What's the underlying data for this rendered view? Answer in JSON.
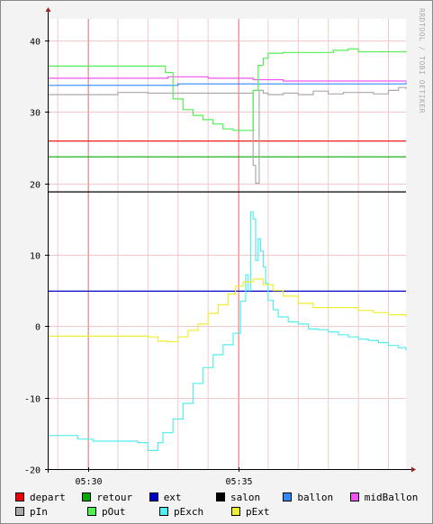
{
  "watermark": "RRDTOOL / TOBI OETIKER",
  "chart_data": {
    "type": "line",
    "title": "",
    "xlabel": "",
    "ylabel": "",
    "ylim": [
      -20,
      43
    ],
    "yticks": [
      -20,
      -10,
      0,
      10,
      20,
      30,
      40
    ],
    "ytick_labels": [
      "-20",
      "-10",
      "0",
      "10",
      "20",
      "30",
      "40"
    ],
    "xlim": [
      "05:28:40",
      "05:40:35"
    ],
    "xticks": [
      "05:30",
      "05:35"
    ],
    "grid": true,
    "legend_position": "bottom",
    "series": [
      {
        "name": "depart",
        "color": "#ee0000",
        "x": [
          "05:28:40",
          "05:40:35"
        ],
        "y": [
          25.9,
          25.9
        ]
      },
      {
        "name": "retour",
        "color": "#00aa00",
        "x": [
          "05:28:40",
          "05:40:35"
        ],
        "y": [
          23.7,
          23.7
        ]
      },
      {
        "name": "ext",
        "color": "#0000cc",
        "x": [
          "05:28:40",
          "05:40:35"
        ],
        "y": [
          4.9,
          4.9
        ]
      },
      {
        "name": "salon",
        "color": "#000000",
        "x": [
          "05:28:40",
          "05:40:35"
        ],
        "y": [
          18.8,
          18.8
        ]
      },
      {
        "name": "ballon",
        "color": "#3388ff",
        "x": [
          "05:28:40",
          "05:33:00",
          "05:36:00",
          "05:40:35"
        ],
        "y": [
          33.7,
          33.9,
          33.9,
          34.1
        ]
      },
      {
        "name": "midBallon",
        "color": "#ee55ee",
        "x": [
          "05:28:40",
          "05:32:40",
          "05:34:00",
          "05:35:30",
          "05:36:30",
          "05:40:35"
        ],
        "y": [
          34.7,
          34.9,
          34.7,
          34.5,
          34.3,
          34.2
        ]
      },
      {
        "name": "pIn",
        "color": "#aaaaaa",
        "x": [
          "05:28:40",
          "05:29:50",
          "05:31:00",
          "05:32:00",
          "05:33:00",
          "05:34:00",
          "05:35:00",
          "05:35:20",
          "05:35:30",
          "05:35:35",
          "05:35:42",
          "05:35:50",
          "05:36:00",
          "05:36:30",
          "05:37:00",
          "05:37:30",
          "05:38:00",
          "05:38:30",
          "05:39:00",
          "05:39:30",
          "05:40:00",
          "05:40:20",
          "05:40:35"
        ],
        "y": [
          32.4,
          32.4,
          32.7,
          32.6,
          32.6,
          32.6,
          32.6,
          32.6,
          22.5,
          20.0,
          33.0,
          32.6,
          32.4,
          32.6,
          32.4,
          32.9,
          32.5,
          32.7,
          32.7,
          32.5,
          33.0,
          33.4,
          33.2
        ]
      },
      {
        "name": "pOut",
        "color": "#55ee55",
        "x": [
          "05:28:40",
          "05:32:30",
          "05:32:35",
          "05:32:50",
          "05:33:10",
          "05:33:30",
          "05:33:50",
          "05:34:10",
          "05:34:30",
          "05:34:50",
          "05:35:20",
          "05:35:30",
          "05:35:40",
          "05:35:50",
          "05:36:00",
          "05:36:30",
          "05:37:00",
          "05:37:40",
          "05:38:10",
          "05:38:40",
          "05:39:00",
          "05:40:35"
        ],
        "y": [
          36.4,
          36.4,
          35.5,
          31.8,
          30.3,
          29.5,
          28.9,
          28.3,
          27.6,
          27.4,
          27.4,
          33.0,
          36.5,
          37.5,
          38.2,
          38.3,
          38.3,
          38.3,
          38.6,
          38.8,
          38.4,
          38.3
        ]
      },
      {
        "name": "pExch",
        "color": "#55eeee",
        "x": [
          "05:28:40",
          "05:29:10",
          "05:29:40",
          "05:30:10",
          "05:30:40",
          "05:31:10",
          "05:31:40",
          "05:32:00",
          "05:32:20",
          "05:32:30",
          "05:32:50",
          "05:33:10",
          "05:33:30",
          "05:33:50",
          "05:34:10",
          "05:34:30",
          "05:34:50",
          "05:35:05",
          "05:35:15",
          "05:35:20",
          "05:35:25",
          "05:35:30",
          "05:35:35",
          "05:35:40",
          "05:35:45",
          "05:35:50",
          "05:35:55",
          "05:36:00",
          "05:36:10",
          "05:36:20",
          "05:36:40",
          "05:37:00",
          "05:37:20",
          "05:37:40",
          "05:38:00",
          "05:38:20",
          "05:38:40",
          "05:39:00",
          "05:39:20",
          "05:39:40",
          "05:40:00",
          "05:40:20",
          "05:40:35"
        ],
        "y": [
          -15.3,
          -15.3,
          -15.8,
          -16.1,
          -16.1,
          -16.1,
          -16.3,
          -17.4,
          -16.3,
          -14.9,
          -13.0,
          -10.8,
          -8.0,
          -5.8,
          -4.0,
          -2.6,
          -1.0,
          3.5,
          7.2,
          5.0,
          16.0,
          15.0,
          9.2,
          12.2,
          10.5,
          8.3,
          6.0,
          3.6,
          2.3,
          1.3,
          0.6,
          0.3,
          -0.4,
          -0.5,
          -0.8,
          -1.2,
          -1.5,
          -1.8,
          -2.0,
          -2.3,
          -2.7,
          -3.0,
          -3.4
        ]
      },
      {
        "name": "pExt",
        "color": "#eeee33",
        "x": [
          "05:28:40",
          "05:29:30",
          "05:30:30",
          "05:31:30",
          "05:32:00",
          "05:32:20",
          "05:32:40",
          "05:33:00",
          "05:33:20",
          "05:33:40",
          "05:34:00",
          "05:34:20",
          "05:34:40",
          "05:34:55",
          "05:35:10",
          "05:35:30",
          "05:35:50",
          "05:36:10",
          "05:36:30",
          "05:37:00",
          "05:37:30",
          "05:38:00",
          "05:38:30",
          "05:39:00",
          "05:39:30",
          "05:40:00",
          "05:40:35"
        ],
        "y": [
          -1.4,
          -1.4,
          -1.4,
          -1.4,
          -1.5,
          -2.1,
          -2.2,
          -1.5,
          -0.6,
          0.3,
          1.8,
          3.0,
          4.5,
          5.6,
          6.2,
          6.6,
          5.8,
          5.0,
          4.2,
          3.2,
          2.6,
          2.6,
          2.6,
          2.2,
          1.9,
          1.6,
          1.3
        ]
      }
    ]
  }
}
